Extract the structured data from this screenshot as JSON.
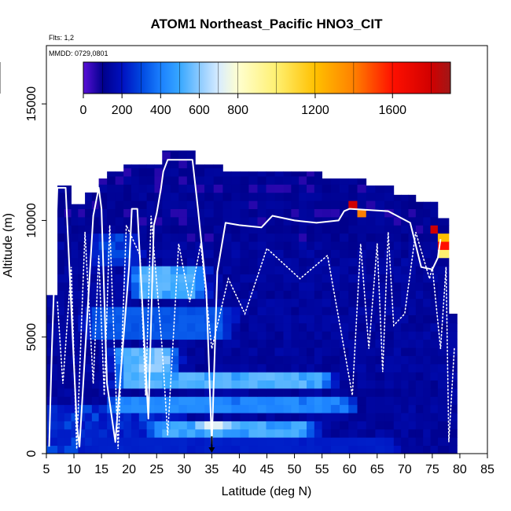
{
  "chart_data": {
    "type": "heatmap",
    "title": "ATOM1 Northeast_Pacific HNO3_CIT",
    "subtitle_flights": "Flts: 1,2",
    "subtitle_dates": "MMDD: 0729,0801",
    "xlabel": "Latitude (deg N)",
    "ylabel": "Altitude (m)",
    "xlim": [
      5,
      85
    ],
    "ylim": [
      0,
      17500
    ],
    "x_ticks": [
      5,
      10,
      15,
      20,
      25,
      30,
      35,
      40,
      45,
      50,
      55,
      60,
      65,
      70,
      75,
      80,
      85
    ],
    "y_ticks": [
      0,
      5000,
      10000,
      15000
    ],
    "colorbar": {
      "range": [
        0,
        1900
      ],
      "tick_values": [
        0,
        200,
        400,
        600,
        800,
        1200,
        1600
      ],
      "boundaries": [
        0,
        100,
        200,
        300,
        400,
        500,
        600,
        700,
        800,
        1000,
        1200,
        1400,
        1600,
        1800,
        1900
      ],
      "colors": [
        "#5a10d8",
        "#00008b",
        "#0010c0",
        "#0048e0",
        "#1a80ff",
        "#38a8ff",
        "#8ccaff",
        "#d8ecff",
        "#ffffd0",
        "#fff070",
        "#ffc000",
        "#ff8000",
        "#ff1000",
        "#d00000",
        "#a01818"
      ]
    },
    "columns": [
      {
        "lat": [
          5.0,
          7.0
        ],
        "top": 6800
      },
      {
        "lat": [
          7.0,
          9.5
        ],
        "top": 11500
      },
      {
        "lat": [
          9.5,
          12.0
        ],
        "top": 10700
      },
      {
        "lat": [
          12.0,
          14.5
        ],
        "top": 11200
      },
      {
        "lat": [
          14.5,
          16.0
        ],
        "top": 11800
      },
      {
        "lat": [
          16.0,
          19.0
        ],
        "top": 12100
      },
      {
        "lat": [
          19.0,
          26.0
        ],
        "top": 12400
      },
      {
        "lat": [
          26.0,
          32.0
        ],
        "top": 13000
      },
      {
        "lat": [
          32.0,
          37.0
        ],
        "top": 12400
      },
      {
        "lat": [
          37.0,
          48.0
        ],
        "top": 12100
      },
      {
        "lat": [
          48.0,
          55.0
        ],
        "top": 12100
      },
      {
        "lat": [
          55.0,
          63.0
        ],
        "top": 11800
      },
      {
        "lat": [
          63.0,
          68.0
        ],
        "top": 11500
      },
      {
        "lat": [
          68.0,
          72.0
        ],
        "top": 11100
      },
      {
        "lat": [
          72.0,
          76.0
        ],
        "top": 10800
      },
      {
        "lat": [
          76.0,
          78.0
        ],
        "top": 10100
      },
      {
        "lat": [
          78.0,
          79.5
        ],
        "top": 6000
      }
    ],
    "layers": [
      {
        "alt": [
          0,
          600
        ],
        "lat": [
          10,
          70
        ],
        "value": 250
      },
      {
        "alt": [
          800,
          1500
        ],
        "lat": [
          23,
          55
        ],
        "value": 560
      },
      {
        "alt": [
          1000,
          1400
        ],
        "lat": [
          31,
          40
        ],
        "value": 750
      },
      {
        "alt": [
          1800,
          2600
        ],
        "lat": [
          15,
          62
        ],
        "value": 480
      },
      {
        "alt": [
          2900,
          3500
        ],
        "lat": [
          16,
          58
        ],
        "value": 600
      },
      {
        "alt": [
          3600,
          4400
        ],
        "lat": [
          16,
          30
        ],
        "value": 650
      },
      {
        "alt": [
          4800,
          6200
        ],
        "lat": [
          11,
          40
        ],
        "value": 370
      },
      {
        "alt": [
          6800,
          8200
        ],
        "lat": [
          19,
          35
        ],
        "value": 590
      },
      {
        "alt": [
          8200,
          9500
        ],
        "lat": [
          12,
          23
        ],
        "value": 320
      }
    ],
    "high_values": [
      {
        "lat": 61.0,
        "alt": 10600,
        "value": 1800
      },
      {
        "lat": 62.0,
        "alt": 10400,
        "value": 1400
      },
      {
        "lat": 75.5,
        "alt": 9600,
        "value": 1800
      },
      {
        "lat": 76.5,
        "alt": 9300,
        "value": 1200
      },
      {
        "lat": 77.0,
        "alt": 9000,
        "value": 1600
      },
      {
        "lat": 77.0,
        "alt": 8600,
        "value": 1000
      }
    ],
    "flight_track_1": [
      [
        5.5,
        300
      ],
      [
        6.0,
        4500
      ],
      [
        7.0,
        11400
      ],
      [
        8.5,
        11400
      ],
      [
        10.5,
        1300
      ],
      [
        11.0,
        300
      ],
      [
        13.5,
        10200
      ],
      [
        14.5,
        11400
      ],
      [
        15.0,
        10500
      ],
      [
        16.0,
        3000
      ],
      [
        17.5,
        500
      ],
      [
        20.0,
        8000
      ],
      [
        20.5,
        10500
      ],
      [
        21.5,
        10500
      ],
      [
        23.5,
        1500
      ],
      [
        24.5,
        9800
      ],
      [
        25.0,
        10300
      ],
      [
        25.8,
        11400
      ],
      [
        26.2,
        12100
      ],
      [
        27.0,
        12600
      ],
      [
        31.5,
        12600
      ],
      [
        32.5,
        10500
      ],
      [
        34.0,
        7000
      ],
      [
        35.0,
        400
      ],
      [
        36.0,
        7800
      ],
      [
        37.5,
        9900
      ],
      [
        40.0,
        9800
      ],
      [
        44.0,
        9700
      ],
      [
        46.0,
        10200
      ],
      [
        50.0,
        10000
      ],
      [
        54.0,
        9900
      ],
      [
        58.0,
        10000
      ],
      [
        59.0,
        10400
      ],
      [
        60.0,
        10500
      ],
      [
        67.0,
        10400
      ],
      [
        71.0,
        9900
      ],
      [
        73.0,
        8000
      ],
      [
        75.0,
        7900
      ],
      [
        76.0,
        8400
      ],
      [
        76.5,
        9200
      ]
    ],
    "flight_track_2": [
      [
        7.0,
        6500
      ],
      [
        8.0,
        3000
      ],
      [
        9.5,
        8000
      ],
      [
        10.5,
        200
      ],
      [
        12.0,
        9500
      ],
      [
        13.5,
        3000
      ],
      [
        14.5,
        8500
      ],
      [
        15.5,
        2500
      ],
      [
        16.5,
        9800
      ],
      [
        18.0,
        200
      ],
      [
        19.5,
        9800
      ],
      [
        22.0,
        8500
      ],
      [
        23.0,
        2500
      ],
      [
        24.0,
        10200
      ],
      [
        26.0,
        4500
      ],
      [
        27.0,
        800
      ],
      [
        29.0,
        9000
      ],
      [
        31.0,
        6500
      ],
      [
        33.0,
        9000
      ],
      [
        35.0,
        4500
      ],
      [
        38.0,
        7500
      ],
      [
        41.0,
        6000
      ],
      [
        45.0,
        8800
      ],
      [
        51.0,
        7500
      ],
      [
        56.0,
        8500
      ],
      [
        60.5,
        2500
      ],
      [
        62.0,
        9000
      ],
      [
        63.5,
        4500
      ],
      [
        65.0,
        9000
      ],
      [
        66.0,
        3500
      ],
      [
        67.0,
        9500
      ],
      [
        68.0,
        5500
      ],
      [
        70.0,
        6000
      ],
      [
        72.0,
        9500
      ],
      [
        74.5,
        7500
      ],
      [
        75.0,
        8000
      ],
      [
        76.5,
        4500
      ],
      [
        77.5,
        8000
      ],
      [
        78.0,
        500
      ],
      [
        79.0,
        4500
      ]
    ],
    "marker": {
      "lat": 35,
      "label": "down-arrow"
    }
  }
}
